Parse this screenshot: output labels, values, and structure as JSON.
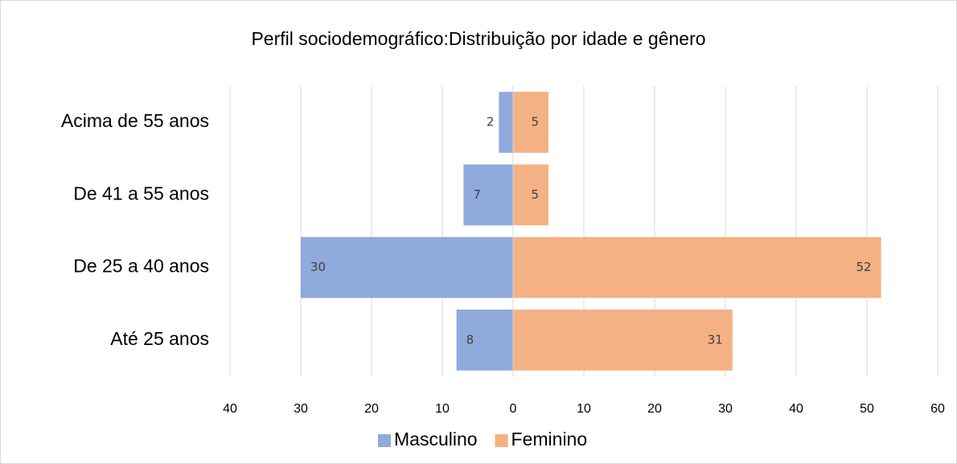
{
  "chart_data": {
    "type": "bar",
    "orientation": "horizontal",
    "stacked": true,
    "title": "Perfil sociodemográfico:Distribuição por idade e gênero",
    "categories": [
      "Acima de 55 anos",
      "De 41 a 55 anos",
      "De 25 a 40 anos",
      "Até 25 anos"
    ],
    "series": [
      {
        "name": "Masculino",
        "color": "#8faadc",
        "values": [
          -2,
          -7,
          -30,
          -8
        ],
        "value_labels": [
          "2",
          "7",
          "30",
          "8"
        ]
      },
      {
        "name": "Feminino",
        "color": "#f4b183",
        "values": [
          5,
          5,
          52,
          31
        ]
      }
    ],
    "xlim": [
      -40,
      60
    ],
    "xticks": [
      {
        "value": -40,
        "label": "40"
      },
      {
        "value": -30,
        "label": "30"
      },
      {
        "value": -20,
        "label": "20"
      },
      {
        "value": -10,
        "label": "10"
      },
      0,
      10,
      20,
      30,
      40,
      50,
      60
    ],
    "grid": true,
    "legend": "bottom"
  }
}
